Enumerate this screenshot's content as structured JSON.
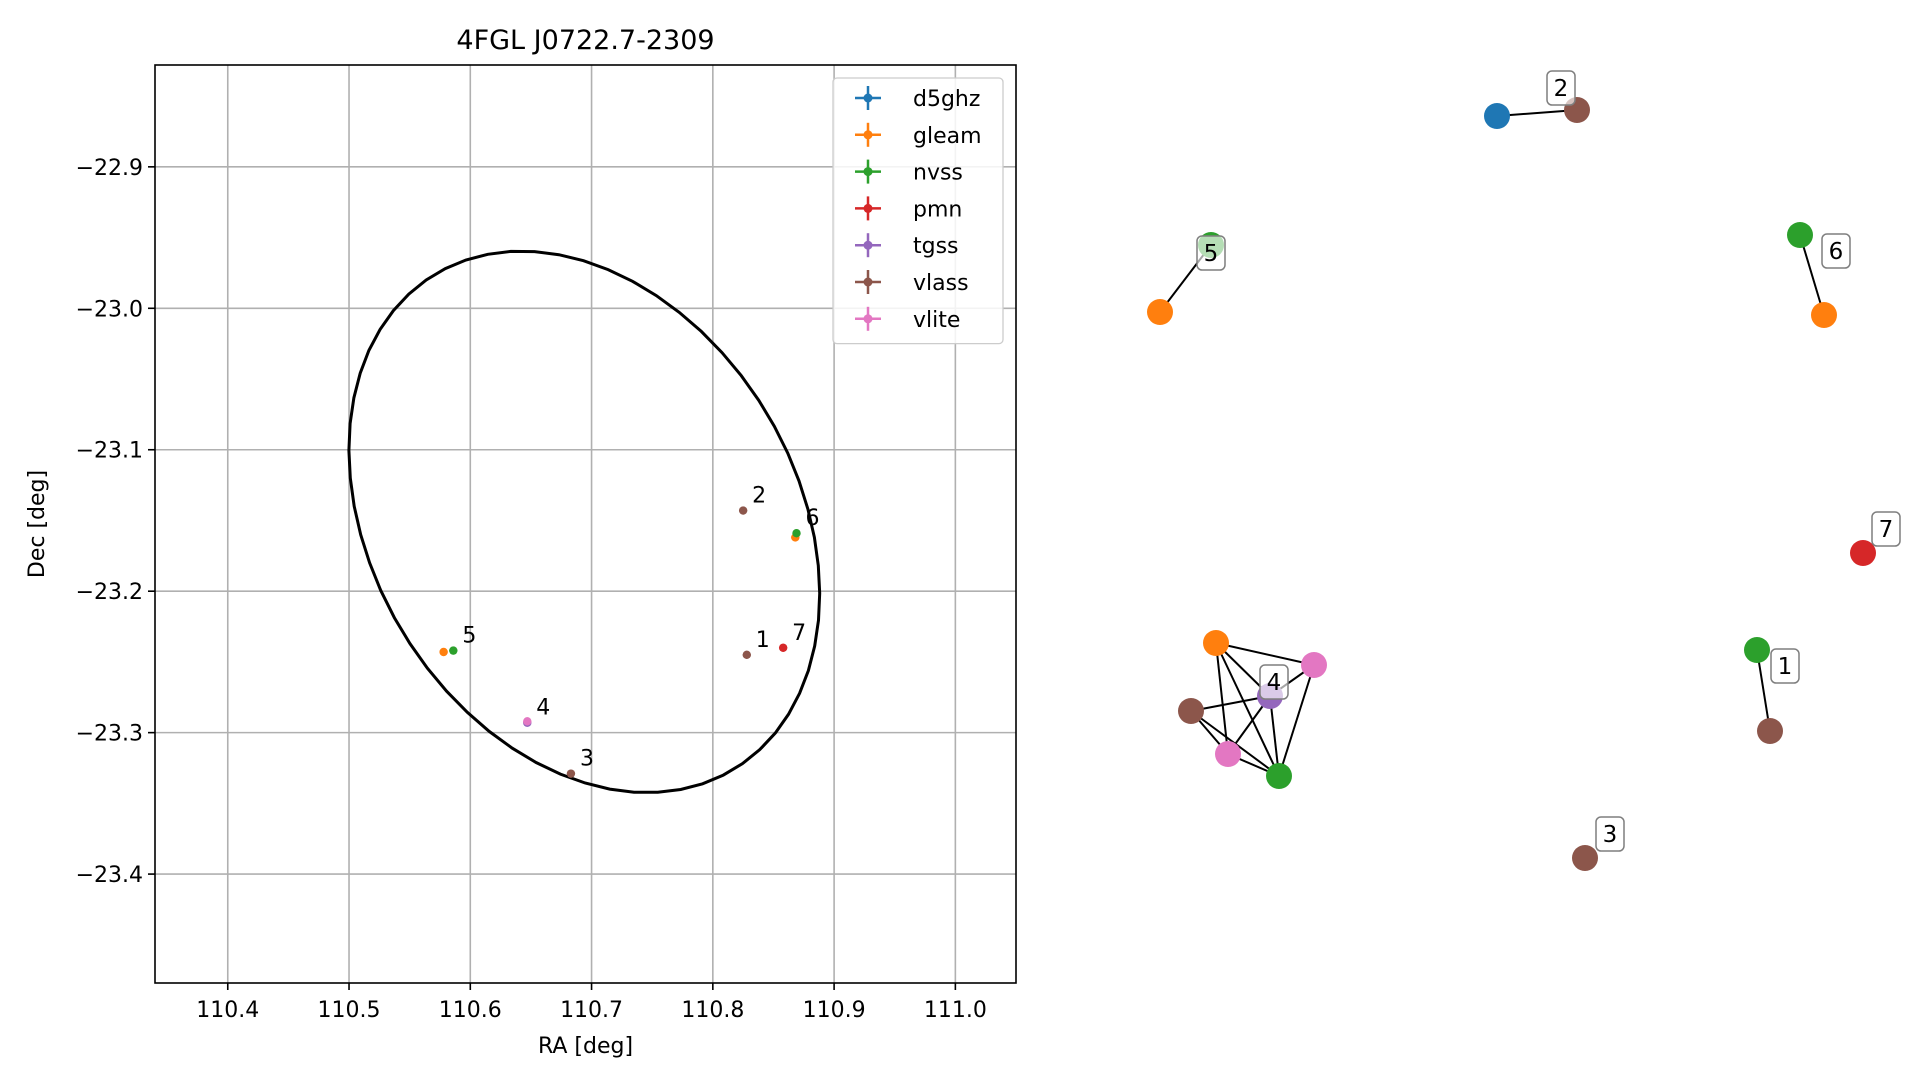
{
  "chart_data": [
    {
      "type": "scatter",
      "title": "4FGL J0722.7-2309",
      "xlabel": "RA [deg]",
      "ylabel": "Dec [deg]",
      "xlim": [
        110.34,
        111.05
      ],
      "ylim": [
        -23.477,
        -22.828
      ],
      "xticks": [
        110.4,
        110.5,
        110.6,
        110.7,
        110.8,
        110.9,
        111.0
      ],
      "xtick_labels": [
        "110.4",
        "110.5",
        "110.6",
        "110.7",
        "110.8",
        "110.9",
        "111.0"
      ],
      "yticks": [
        -22.9,
        -23.0,
        -23.1,
        -23.2,
        -23.3,
        -23.4
      ],
      "ytick_labels": [
        "−22.9",
        "−23.0",
        "−23.1",
        "−23.2",
        "−23.3",
        "−23.4"
      ],
      "grid": true,
      "legend_position": "top-right",
      "series": [
        {
          "name": "d5ghz",
          "color": "#1f77b4",
          "points": []
        },
        {
          "name": "gleam",
          "color": "#ff7f0e",
          "points": [
            [
              110.578,
              -23.243
            ],
            [
              110.868,
              -23.162
            ]
          ]
        },
        {
          "name": "nvss",
          "color": "#2ca02c",
          "points": [
            [
              110.586,
              -23.242
            ],
            [
              110.869,
              -23.159
            ]
          ]
        },
        {
          "name": "pmn",
          "color": "#d62728",
          "points": [
            [
              110.858,
              -23.24
            ]
          ]
        },
        {
          "name": "tgss",
          "color": "#9467bd",
          "points": [
            [
              110.647,
              -23.293
            ]
          ]
        },
        {
          "name": "vlass",
          "color": "#8c564b",
          "points": [
            [
              110.825,
              -23.143
            ],
            [
              110.828,
              -23.245
            ],
            [
              110.683,
              -23.329
            ]
          ]
        },
        {
          "name": "vlite",
          "color": "#e377c2",
          "points": [
            [
              110.647,
              -23.292
            ]
          ]
        }
      ],
      "annotations": [
        {
          "text": "1",
          "x": 110.828,
          "y": -23.245
        },
        {
          "text": "2",
          "x": 110.825,
          "y": -23.143
        },
        {
          "text": "3",
          "x": 110.683,
          "y": -23.329
        },
        {
          "text": "4",
          "x": 110.647,
          "y": -23.293
        },
        {
          "text": "5",
          "x": 110.586,
          "y": -23.242
        },
        {
          "text": "6",
          "x": 110.869,
          "y": -23.159
        },
        {
          "text": "7",
          "x": 110.858,
          "y": -23.24
        }
      ],
      "ellipse": {
        "center": [
          110.694,
          -23.151
        ],
        "semi_major_deg": 0.217,
        "semi_minor_deg": 0.165,
        "angle_deg": -43.5
      }
    },
    {
      "type": "network",
      "clusters": [
        {
          "label": "1",
          "nodes": [
            {
              "survey": "nvss",
              "color": "#2ca02c"
            },
            {
              "survey": "vlass",
              "color": "#8c564b"
            }
          ],
          "edges": [
            [
              0,
              1
            ]
          ]
        },
        {
          "label": "2",
          "nodes": [
            {
              "survey": "d5ghz",
              "color": "#1f77b4"
            },
            {
              "survey": "vlass",
              "color": "#8c564b"
            }
          ],
          "edges": [
            [
              0,
              1
            ]
          ]
        },
        {
          "label": "3",
          "nodes": [
            {
              "survey": "vlass",
              "color": "#8c564b"
            }
          ],
          "edges": []
        },
        {
          "label": "4",
          "nodes": [
            {
              "survey": "gleam",
              "color": "#ff7f0e"
            },
            {
              "survey": "vlite",
              "color": "#e377c2"
            },
            {
              "survey": "tgss",
              "color": "#9467bd"
            },
            {
              "survey": "vlass",
              "color": "#8c564b"
            },
            {
              "survey": "vlite",
              "color": "#e377c2"
            },
            {
              "survey": "nvss",
              "color": "#2ca02c"
            }
          ],
          "edges": [
            [
              0,
              1
            ],
            [
              0,
              2
            ],
            [
              0,
              4
            ],
            [
              0,
              5
            ],
            [
              1,
              2
            ],
            [
              1,
              5
            ],
            [
              2,
              3
            ],
            [
              2,
              4
            ],
            [
              2,
              5
            ],
            [
              3,
              4
            ],
            [
              3,
              5
            ],
            [
              4,
              5
            ]
          ]
        },
        {
          "label": "5",
          "nodes": [
            {
              "survey": "nvss",
              "color": "#2ca02c"
            },
            {
              "survey": "gleam",
              "color": "#ff7f0e"
            }
          ],
          "edges": [
            [
              0,
              1
            ]
          ]
        },
        {
          "label": "6",
          "nodes": [
            {
              "survey": "nvss",
              "color": "#2ca02c"
            },
            {
              "survey": "gleam",
              "color": "#ff7f0e"
            }
          ],
          "edges": [
            [
              0,
              1
            ]
          ]
        },
        {
          "label": "7",
          "nodes": [
            {
              "survey": "pmn",
              "color": "#d62728"
            }
          ],
          "edges": []
        }
      ]
    }
  ]
}
